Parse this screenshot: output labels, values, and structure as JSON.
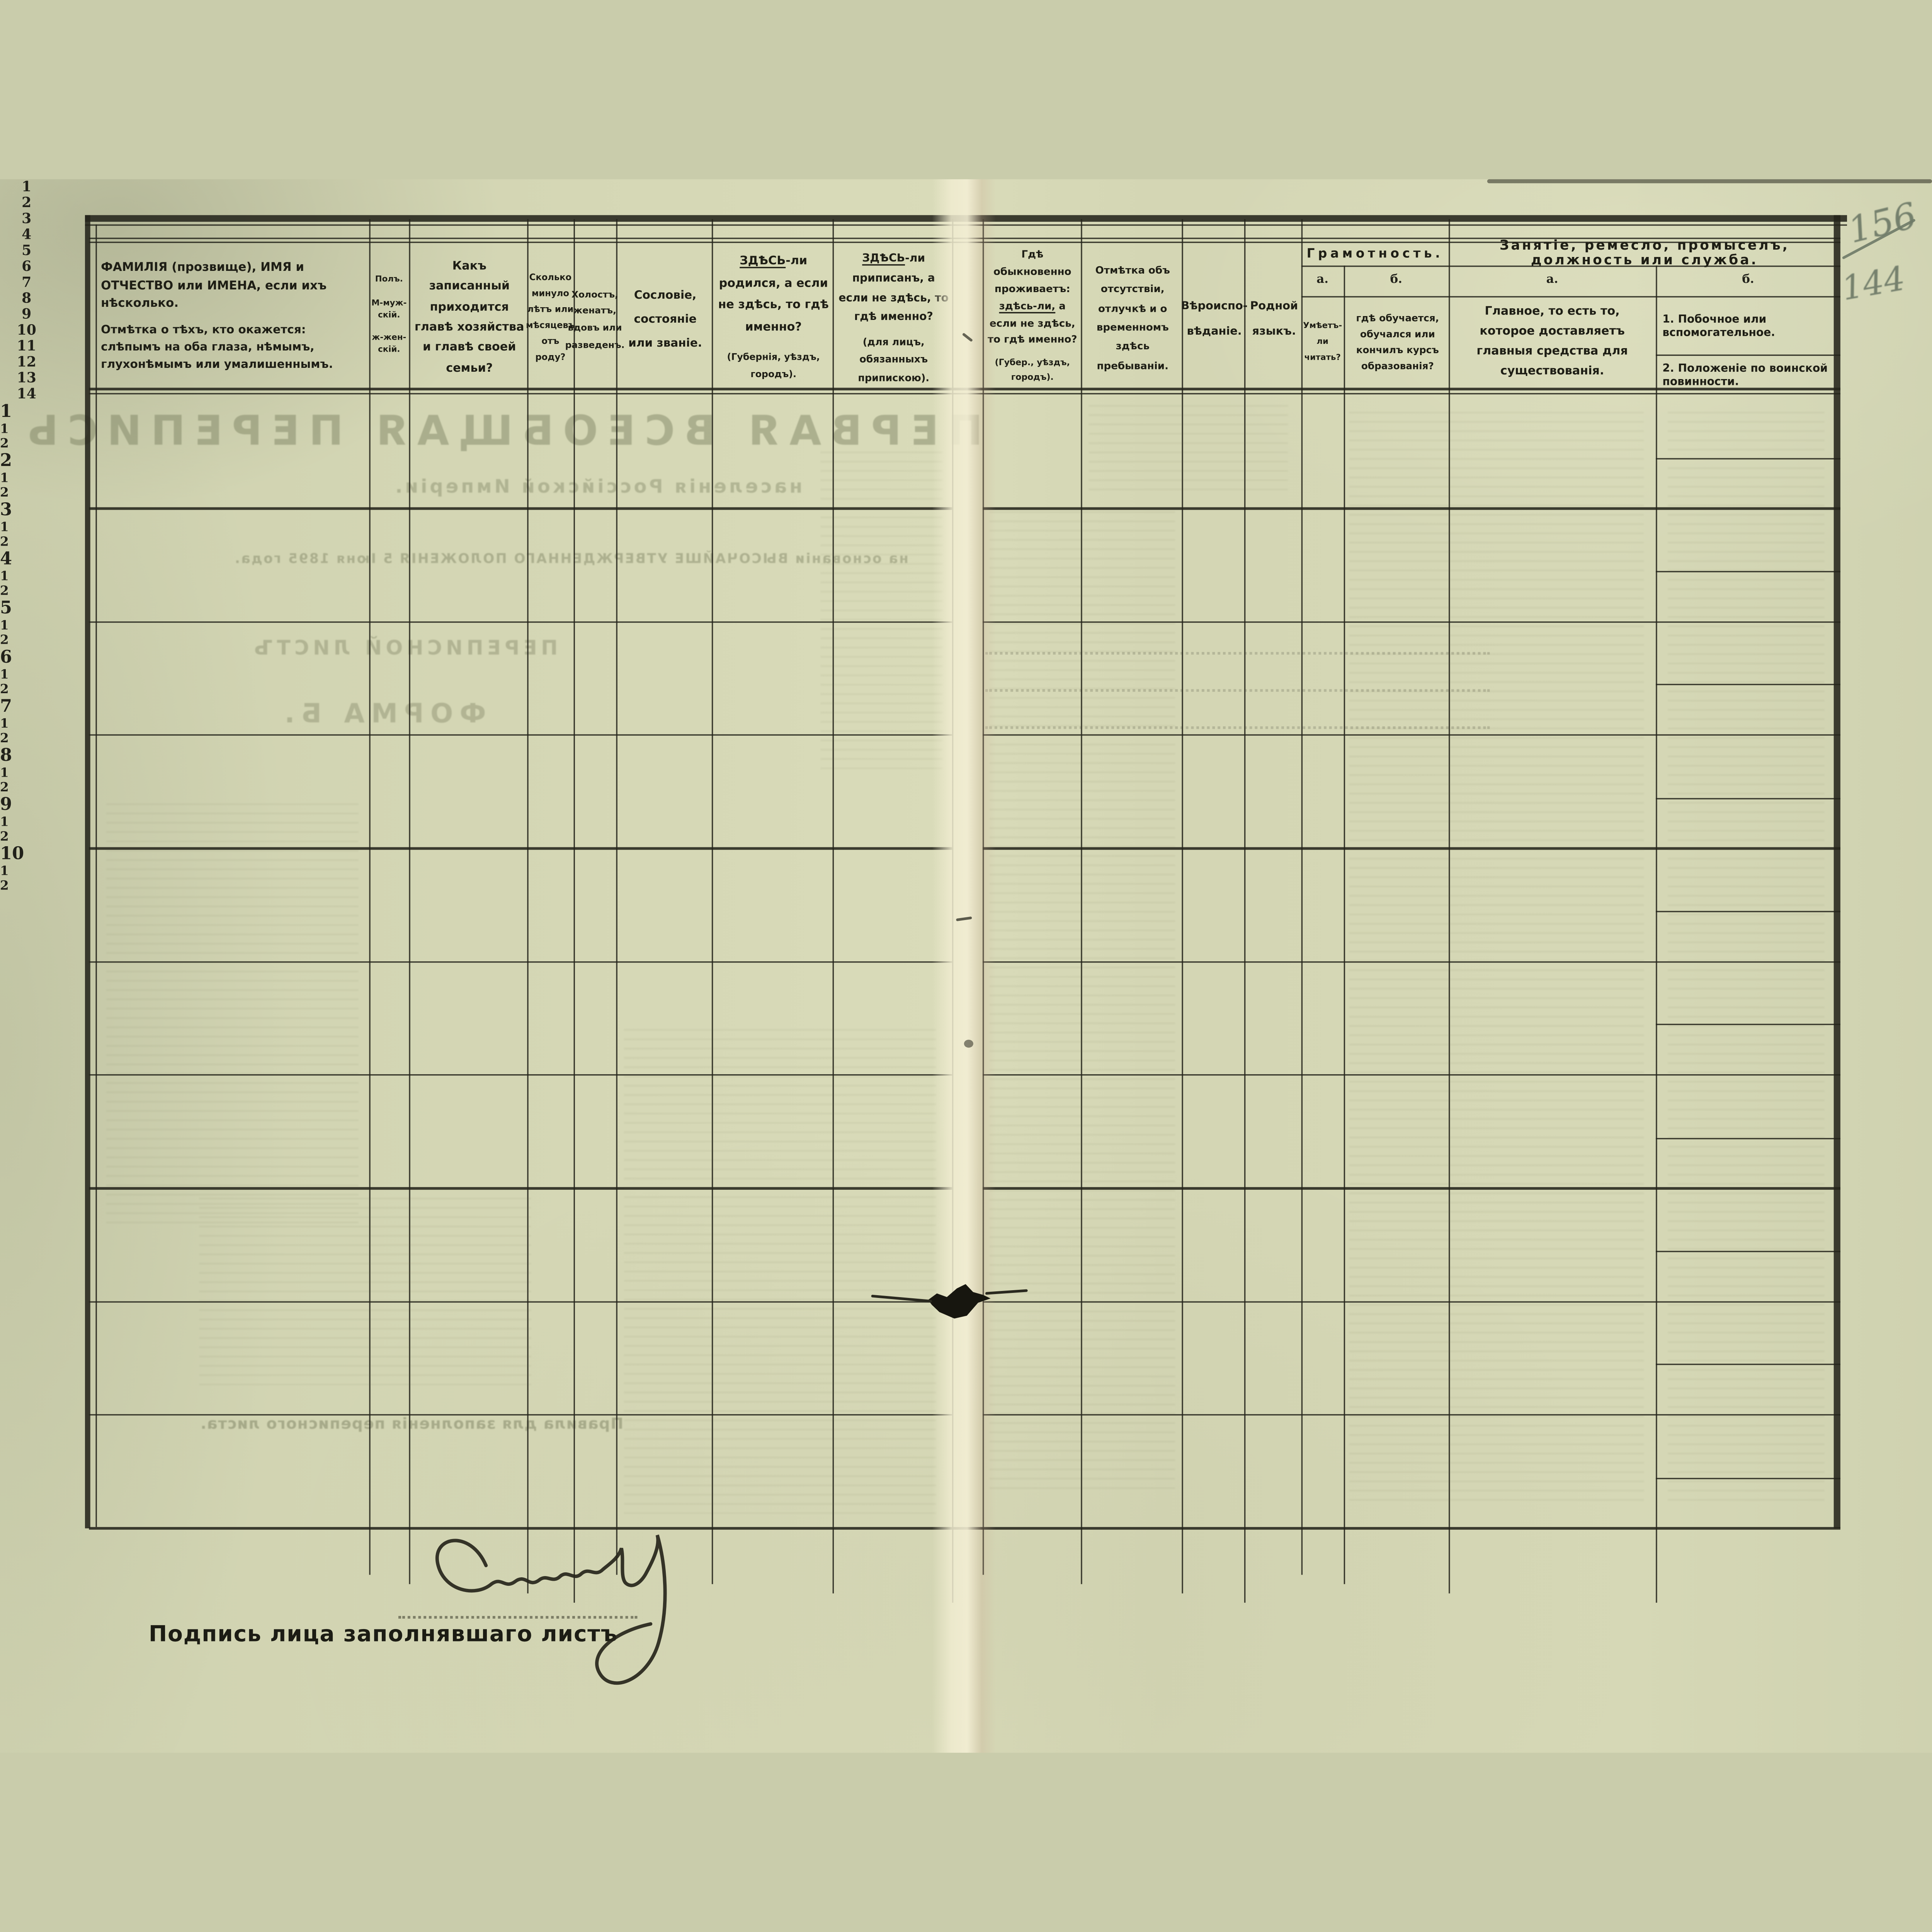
{
  "document": {
    "kind": "Переписной листъ — бланкъ таблицы (Первая всеобщая перепись населенія, 1897)",
    "corner_numbers": {
      "crossed_out": "156",
      "current": "144"
    }
  },
  "table": {
    "column_numbers": [
      "1",
      "2",
      "3",
      "4",
      "5",
      "6",
      "7",
      "8",
      "9",
      "10",
      "11",
      "12",
      "13",
      "14"
    ],
    "headers": {
      "col1_main": "ФАМИЛІЯ (прозвище), ИМЯ и ОТЧЕСТВО или ИМЕНА, если ихъ нѣсколько.",
      "col1_note": "Отмѣтка о тѣхъ, кто окажется: слѣпымъ на оба глаза, нѣмымъ, глухонѣмымъ или умалишеннымъ.",
      "col2": "Полъ.\n\nМ-муж-\nскій.\n\nж-жен-\nскій.",
      "col3": "Какъ записанный приходится главѣ хозяйства и главѣ своей семьи?",
      "col4": "Сколько минуло лѣтъ или мѣсяцевъ отъ роду?",
      "col5": "Холостъ, женатъ, вдовъ или разведенъ.",
      "col6": "Сословіе, состояніе или званіе.",
      "col7_lead": "ЗДѢСЬ",
      "col7_rest": "-ли родился, а если не здѣсь, то гдѣ именно?",
      "col7_note": "(Губернія, уѣздъ, городъ).",
      "col8_lead": "ЗДѢСЬ",
      "col8_rest": "-ли приписанъ, а если не здѣсь, то гдѣ именно?",
      "col8_note": "(для лицъ, обязанныхъ припискою).",
      "col9_pre": "Гдѣ обыкновенно проживаетъ: ",
      "col9_lead": "здѣсь-ли,",
      "col9_rest": " а если не здѣсь, то гдѣ именно?",
      "col9_note": "(Губер., уѣздъ, городъ).",
      "col10": "Отмѣтка объ отсутствіи, отлучкѣ и о временномъ здѣсь пребываніи.",
      "col11": "Вѣроиспо-вѣданіе.",
      "col12": "Родной языкъ.",
      "col13_title": "Грамотность.",
      "col13_a_label": "а.",
      "col13_b_label": "б.",
      "col13_a": "Умѣетъ-ли читать?",
      "col13_b": "гдѣ обучается, обучался или кончилъ курсъ образованія?",
      "col14_title": "Занятіе, ремесло, промыселъ, должность или служба.",
      "col14_a_label": "а.",
      "col14_b_label": "б.",
      "col14_a": "Главное, то есть то, которое доставляетъ главныя средства для существованія.",
      "col14_b1": "1. Побочное или вспомогательное.",
      "col14_b2": "2. Положеніе по воинской повинности."
    },
    "rows": [
      {
        "num": "1",
        "subs": [
          "1",
          "2"
        ]
      },
      {
        "num": "2",
        "subs": [
          "1",
          "2"
        ]
      },
      {
        "num": "3",
        "subs": [
          "1",
          "2"
        ]
      },
      {
        "num": "4",
        "subs": [
          "1",
          "2"
        ]
      },
      {
        "num": "5",
        "subs": [
          "1",
          "2"
        ]
      },
      {
        "num": "6",
        "subs": [
          "1",
          "2"
        ]
      },
      {
        "num": "7",
        "subs": [
          "1",
          "2"
        ]
      },
      {
        "num": "8",
        "subs": [
          "1",
          "2"
        ]
      },
      {
        "num": "9",
        "subs": [
          "1",
          "2"
        ]
      },
      {
        "num": "10",
        "subs": [
          "1",
          "2"
        ]
      }
    ]
  },
  "footer": {
    "signature_label": "Подпись лица заполнявшаго листъ",
    "signature_name": "Смикевъ"
  },
  "bleedthrough": {
    "title": "ПЕРВАЯ ВСЕОБЩАЯ ПЕРЕПИСЬ",
    "subtitle": "населенія Россійской Имперіи.",
    "law_line": "на основаніи ВЫСОЧАЙШЕ УТВЕРЖДЕННАГО ПОЛОЖЕНІЯ 5 Іюня 1895 года.",
    "sheet_line": "ПЕРЕПИСНОЙ ЛИСТЪ",
    "form_line": "ФОРМА Б.",
    "rules_line": "Правила для заполненія переписного листа."
  }
}
